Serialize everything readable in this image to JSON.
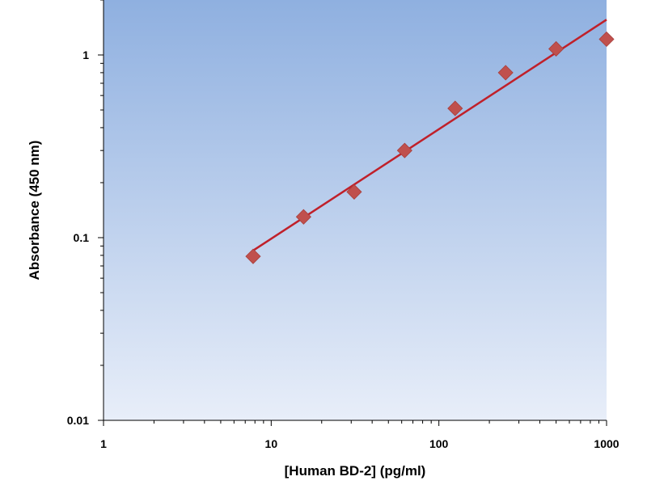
{
  "chart_data": {
    "type": "scatter",
    "title": "",
    "xlabel": "[Human BD-2] (pg/ml)",
    "ylabel": "Absorbance (450 nm)",
    "x_scale": "log",
    "y_scale": "log",
    "xlim": [
      1,
      1000
    ],
    "ylim": [
      0.01,
      2
    ],
    "x_ticks": [
      1,
      10,
      100,
      1000
    ],
    "x_tick_labels": [
      "1",
      "10",
      "100",
      "1000"
    ],
    "y_ticks": [
      0.01,
      0.1,
      1
    ],
    "y_tick_labels": [
      "0.01",
      "0.1",
      "1"
    ],
    "grid": false,
    "legend": "none",
    "series": [
      {
        "marker": "diamond",
        "color": "#c0504d",
        "points": [
          {
            "x": 7.8,
            "y": 0.079
          },
          {
            "x": 15.6,
            "y": 0.13
          },
          {
            "x": 31.25,
            "y": 0.178
          },
          {
            "x": 62.5,
            "y": 0.3
          },
          {
            "x": 125,
            "y": 0.51
          },
          {
            "x": 250,
            "y": 0.8
          },
          {
            "x": 500,
            "y": 1.08
          },
          {
            "x": 1000,
            "y": 1.22
          }
        ]
      }
    ],
    "fit_line": {
      "color": "#c0202a",
      "x": [
        7.8,
        1000
      ],
      "y": [
        0.085,
        1.56
      ]
    },
    "plot_background": {
      "top": "#8fb0e0",
      "bottom": "#e8eef9"
    }
  }
}
